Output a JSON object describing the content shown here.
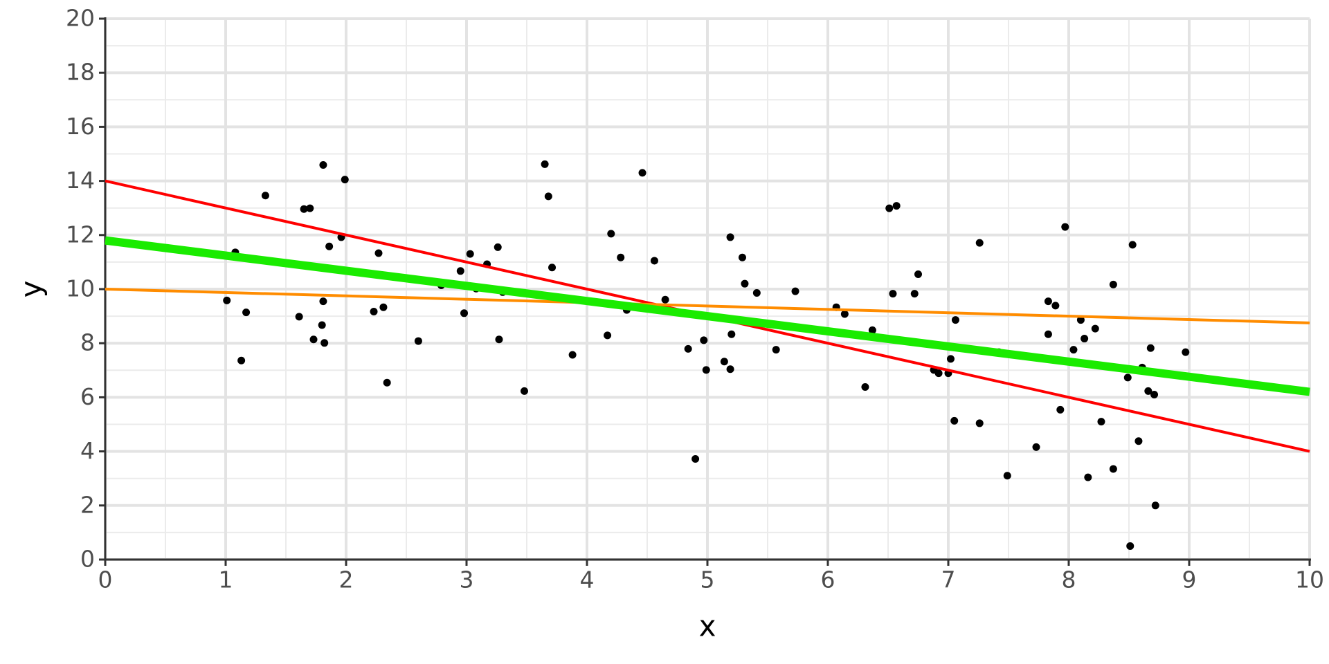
{
  "chart_data": {
    "type": "scatter",
    "xlabel": "x",
    "ylabel": "y",
    "xlim": [
      0,
      10
    ],
    "ylim": [
      0,
      20
    ],
    "xticks": [
      0,
      1,
      2,
      3,
      4,
      5,
      6,
      7,
      8,
      9,
      10
    ],
    "yticks": [
      0,
      2,
      4,
      6,
      8,
      10,
      12,
      14,
      16,
      18,
      20
    ],
    "grid": true,
    "series": [
      {
        "type": "scatter",
        "color": "#000000",
        "x": [
          1.01,
          1.08,
          1.13,
          1.17,
          1.33,
          1.61,
          1.65,
          1.7,
          1.73,
          1.81,
          1.8,
          1.81,
          1.82,
          1.86,
          1.96,
          1.99,
          2.23,
          2.27,
          2.31,
          2.34,
          2.6,
          2.79,
          2.95,
          2.98,
          3.03,
          3.08,
          3.17,
          3.26,
          3.27,
          3.3,
          3.48,
          3.65,
          3.68,
          3.71,
          3.88,
          4.17,
          4.2,
          4.28,
          4.33,
          4.46,
          4.56,
          4.65,
          4.84,
          4.9,
          4.97,
          4.99,
          5.14,
          5.19,
          5.19,
          5.2,
          5.29,
          5.31,
          5.41,
          5.56,
          5.57,
          5.73,
          6.07,
          6.14,
          6.31,
          6.37,
          6.51,
          6.57,
          6.54,
          6.72,
          6.75,
          6.88,
          6.92,
          7.0,
          7.02,
          7.05,
          7.06,
          7.26,
          7.26,
          7.42,
          7.49,
          7.73,
          7.83,
          7.83,
          7.89,
          7.93,
          7.97,
          8.04,
          8.1,
          8.13,
          8.16,
          8.22,
          8.27,
          8.37,
          8.37,
          8.49,
          8.51,
          8.53,
          8.58,
          8.61,
          8.66,
          8.68,
          8.71,
          8.72,
          8.97
        ],
        "values": [
          9.58,
          11.36,
          7.36,
          9.14,
          13.46,
          8.98,
          12.96,
          12.99,
          8.14,
          14.59,
          8.67,
          9.55,
          8.01,
          11.58,
          11.92,
          14.05,
          9.17,
          11.33,
          9.33,
          6.54,
          8.08,
          10.14,
          10.67,
          9.11,
          11.3,
          10.02,
          10.92,
          11.55,
          8.14,
          9.89,
          6.23,
          14.62,
          13.43,
          10.8,
          7.57,
          8.29,
          12.05,
          11.17,
          9.23,
          14.3,
          11.05,
          9.61,
          7.79,
          3.72,
          8.11,
          7.01,
          7.32,
          11.92,
          7.04,
          8.33,
          11.17,
          10.2,
          9.86,
          8.7,
          7.76,
          9.92,
          9.33,
          9.08,
          6.38,
          8.48,
          12.99,
          13.08,
          9.83,
          9.83,
          10.55,
          7.01,
          6.89,
          6.89,
          7.42,
          5.13,
          8.86,
          5.04,
          11.71,
          7.67,
          3.1,
          4.16,
          8.33,
          9.55,
          9.39,
          5.54,
          12.3,
          7.76,
          8.86,
          8.17,
          3.04,
          8.54,
          5.1,
          10.17,
          3.35,
          6.73,
          0.5,
          11.64,
          4.38,
          7.1,
          6.23,
          7.82,
          6.1,
          2.0,
          7.67
        ]
      },
      {
        "type": "line",
        "color": "#ff0000",
        "x": [
          0,
          10
        ],
        "values": [
          14,
          4
        ]
      },
      {
        "type": "line",
        "color": "#ff8c00",
        "x": [
          0,
          10
        ],
        "values": [
          10,
          8.75
        ]
      },
      {
        "type": "line",
        "color": "#1aeb00",
        "x": [
          0,
          10
        ],
        "values": [
          11.8,
          6.2
        ]
      }
    ]
  }
}
